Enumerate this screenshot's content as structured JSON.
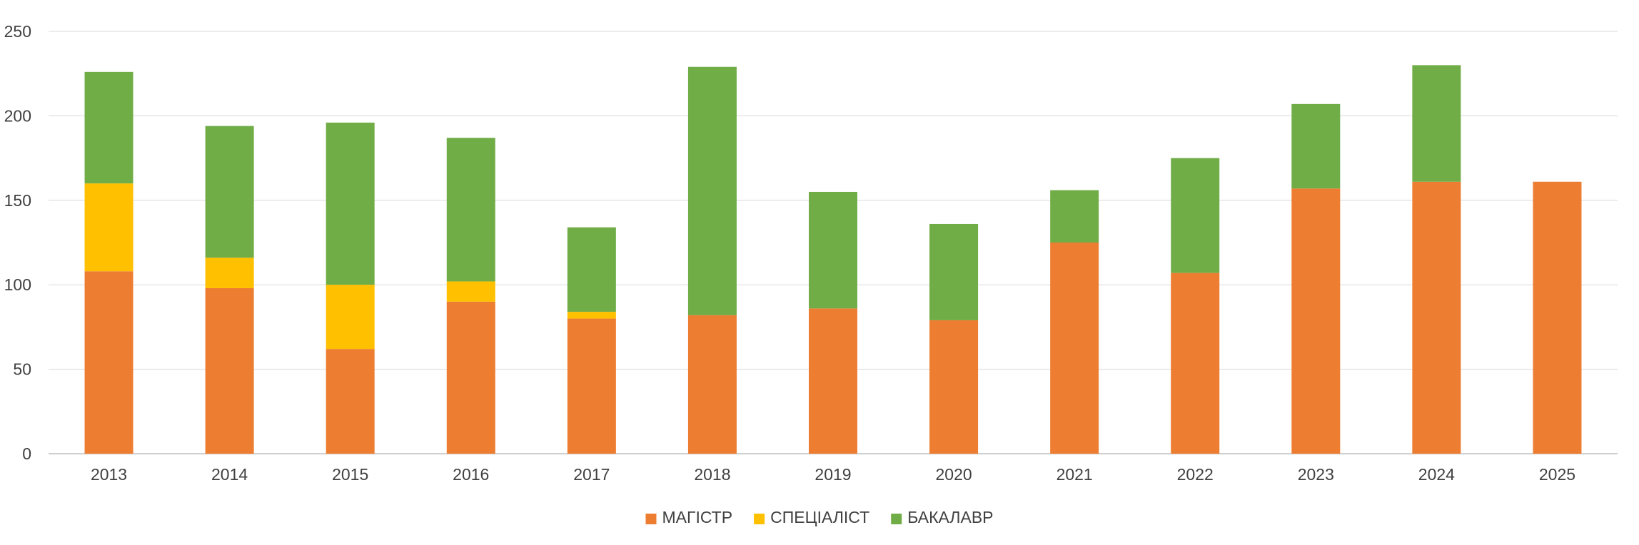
{
  "chart_data": {
    "type": "bar",
    "stacked": true,
    "title": "",
    "xlabel": "",
    "ylabel": "",
    "ylim": [
      0,
      250
    ],
    "yticks": [
      0,
      50,
      100,
      150,
      200,
      250
    ],
    "grid": true,
    "legend_position": "bottom",
    "categories": [
      "2013",
      "2014",
      "2015",
      "2016",
      "2017",
      "2018",
      "2019",
      "2020",
      "2021",
      "2022",
      "2023",
      "2024",
      "2025"
    ],
    "series": [
      {
        "name": "МАГІСТР",
        "color": "#ED7D31",
        "values": [
          108,
          98,
          62,
          90,
          80,
          82,
          86,
          79,
          125,
          107,
          157,
          161,
          161
        ]
      },
      {
        "name": "СПЕЦІАЛІСТ",
        "color": "#FFC000",
        "values": [
          52,
          18,
          38,
          12,
          4,
          0,
          0,
          0,
          0,
          0,
          0,
          0,
          0
        ]
      },
      {
        "name": "БАКАЛАВР",
        "color": "#70AD47",
        "values": [
          66,
          78,
          96,
          85,
          50,
          147,
          69,
          57,
          31,
          68,
          50,
          69,
          0
        ]
      }
    ]
  }
}
